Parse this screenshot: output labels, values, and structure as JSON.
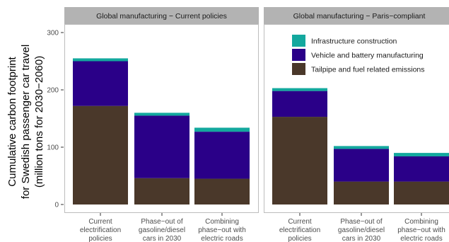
{
  "chart_data": {
    "type": "bar",
    "stacked": true,
    "ylabel_lines": [
      "Cumulative carbon footprint",
      "for Swedish passenger car travel",
      "(million tons for 2030−2060)"
    ],
    "ylim": [
      0,
      300
    ],
    "yticks": [
      "0",
      "100",
      "200",
      "300"
    ],
    "ytick_values": [
      0,
      100,
      200,
      300
    ],
    "grid": false,
    "legend_position": "top-right",
    "categories": [
      [
        "Current",
        "electrification",
        "policies"
      ],
      [
        "Phase−out of",
        "gasoline/diesel",
        "cars in 2030"
      ],
      [
        "Combining",
        "phase−out with",
        "electric roads"
      ]
    ],
    "series": [
      {
        "name": "Tailpipe and fuel related emissions",
        "color": "#4a382a"
      },
      {
        "name": "Vehicle and battery manufacturing",
        "color": "#2a0088"
      },
      {
        "name": "Infrastructure construction",
        "color": "#13a89e"
      }
    ],
    "panels": [
      {
        "title": "Global manufacturing − Current policies",
        "show_legend": false,
        "values": [
          [
            172,
            78,
            5
          ],
          [
            46,
            109,
            5
          ],
          [
            45,
            82,
            7
          ]
        ]
      },
      {
        "title": "Global manufacturing − Paris−compliant",
        "show_legend": true,
        "values": [
          [
            153,
            45,
            5
          ],
          [
            40,
            57,
            5
          ],
          [
            40,
            44,
            6
          ]
        ]
      }
    ]
  }
}
